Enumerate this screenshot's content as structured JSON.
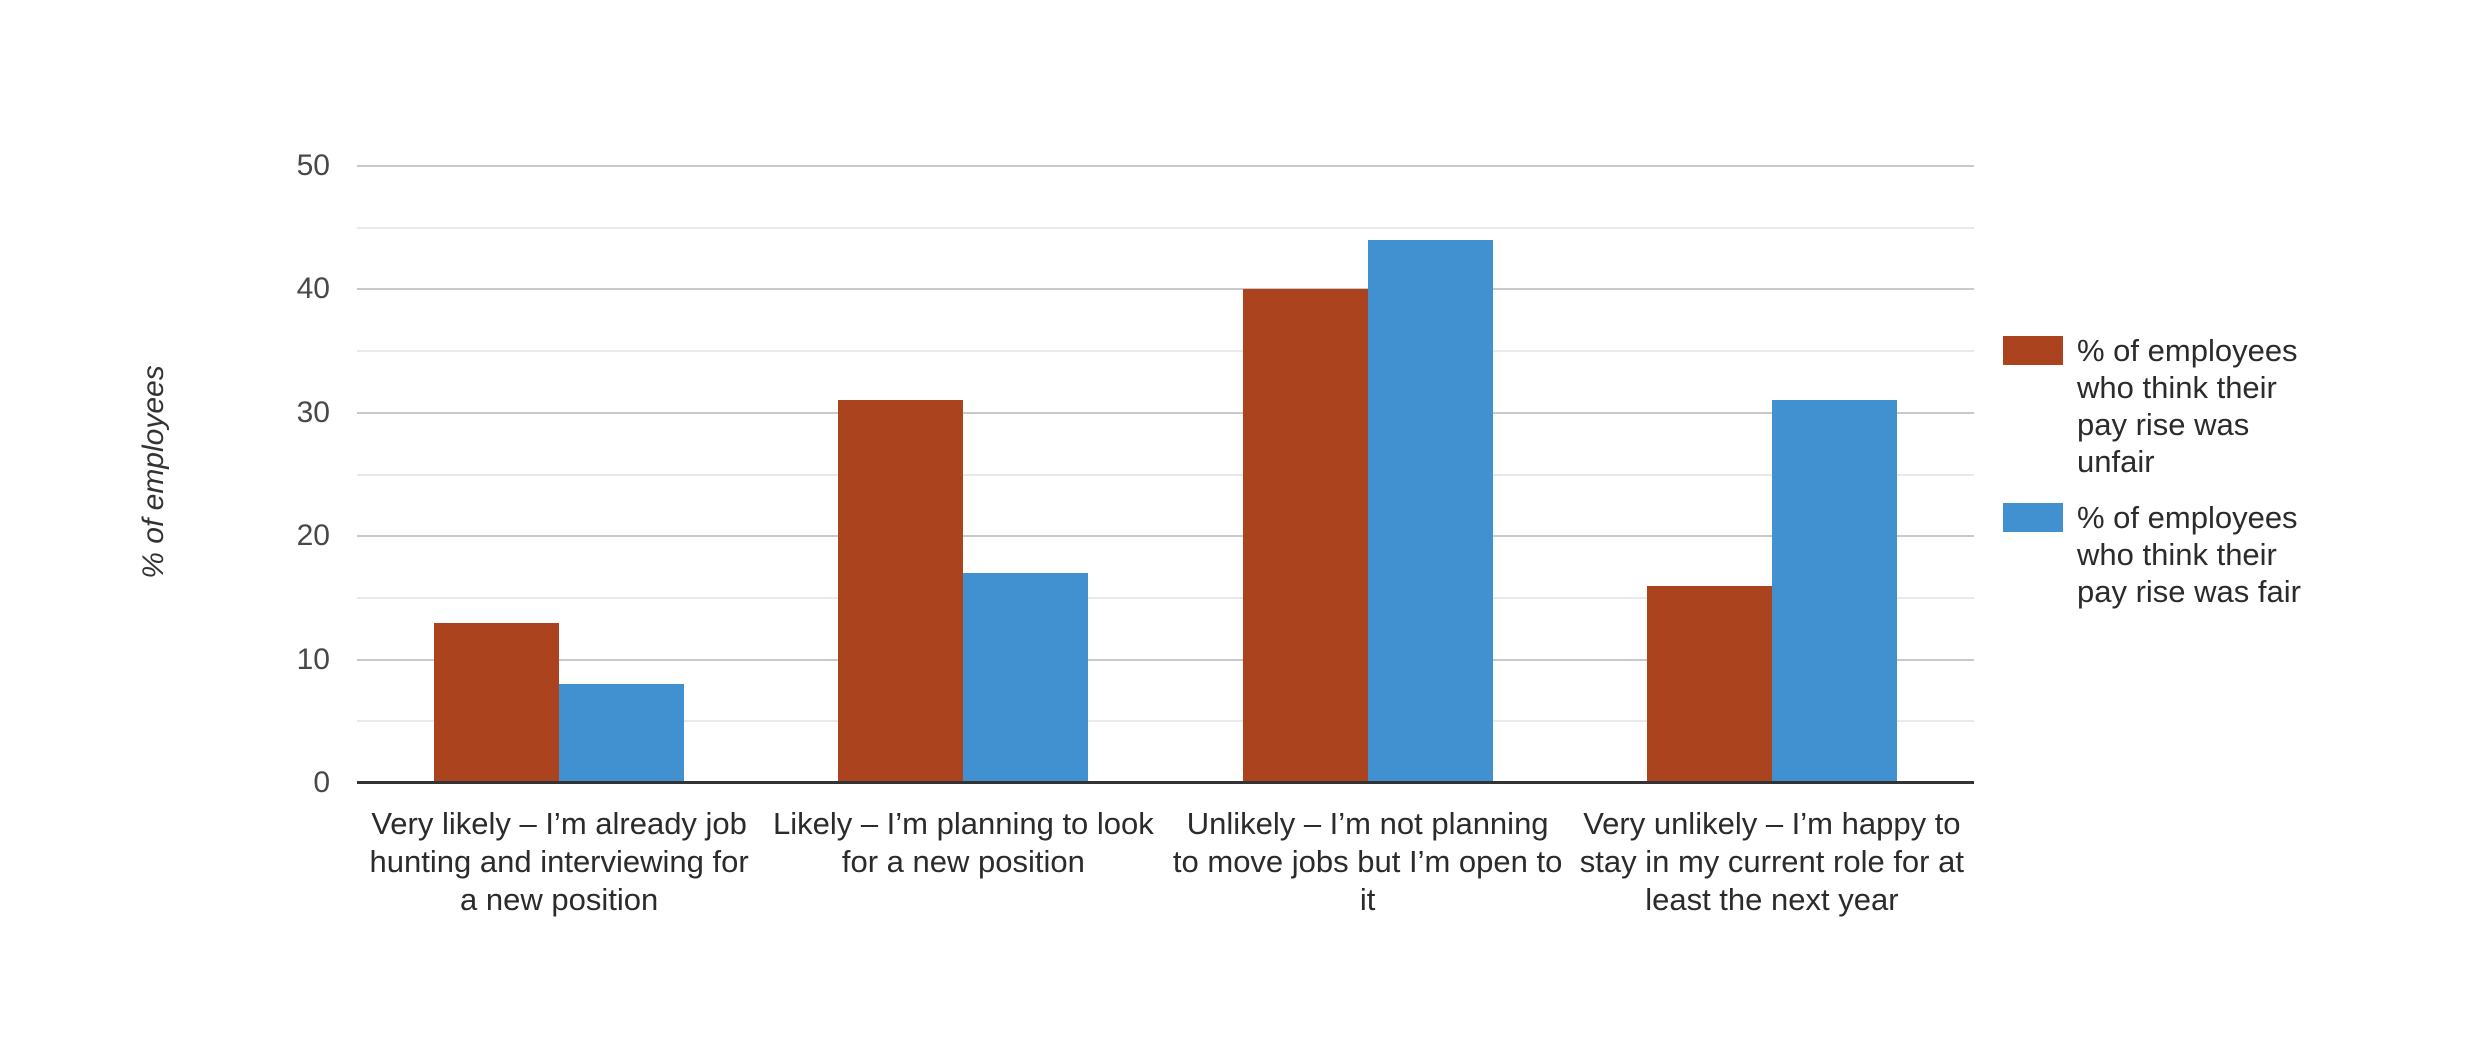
{
  "chart_data": {
    "type": "bar",
    "title": "",
    "xlabel": "",
    "ylabel": "% of employees",
    "ylim": [
      0,
      50
    ],
    "y_ticks": [
      0,
      10,
      20,
      30,
      40,
      50
    ],
    "y_minor_step": 5,
    "grid": "horizontal, major every 10 with lighter minors every 5",
    "legend_position": "right",
    "background_color": "#ffffff",
    "categories": [
      "Very likely – I’m already job hunting and interviewing for a new position",
      "Likely – I’m planning to look for a new position",
      "Unlikely – I’m not planning to move jobs but I’m open to it",
      "Very unlikely – I’m happy to stay in my current role for at least the next year"
    ],
    "category_label_lines": [
      [
        "Very likely – I’m already job",
        "hunting and interviewing for",
        "a new position"
      ],
      [
        "Likely – I’m planning to look",
        "for a new position"
      ],
      [
        "Unlikely – I’m not planning",
        "to move jobs but I’m open to",
        "it"
      ],
      [
        "Very unlikely – I’m happy to",
        "stay in my current role for at",
        "least the next year"
      ]
    ],
    "series": [
      {
        "name": "% of employees who think their pay rise was unfair",
        "label_lines": [
          "% of employees",
          "who think their",
          "pay rise was",
          "unfair"
        ],
        "color": "#AC431F",
        "values": [
          13,
          31,
          40,
          16
        ]
      },
      {
        "name": "% of employees who think their pay rise was fair",
        "label_lines": [
          "% of employees",
          "who think their",
          "pay rise was fair"
        ],
        "color": "#4190D0",
        "values": [
          8,
          17,
          44,
          31
        ]
      }
    ]
  },
  "colors": {
    "major_gridline": "#c9c9c9",
    "minor_gridline": "#e9e9e9",
    "axis_line": "#333333",
    "tick_text": "#484848",
    "label_text": "#2b2b2b"
  }
}
